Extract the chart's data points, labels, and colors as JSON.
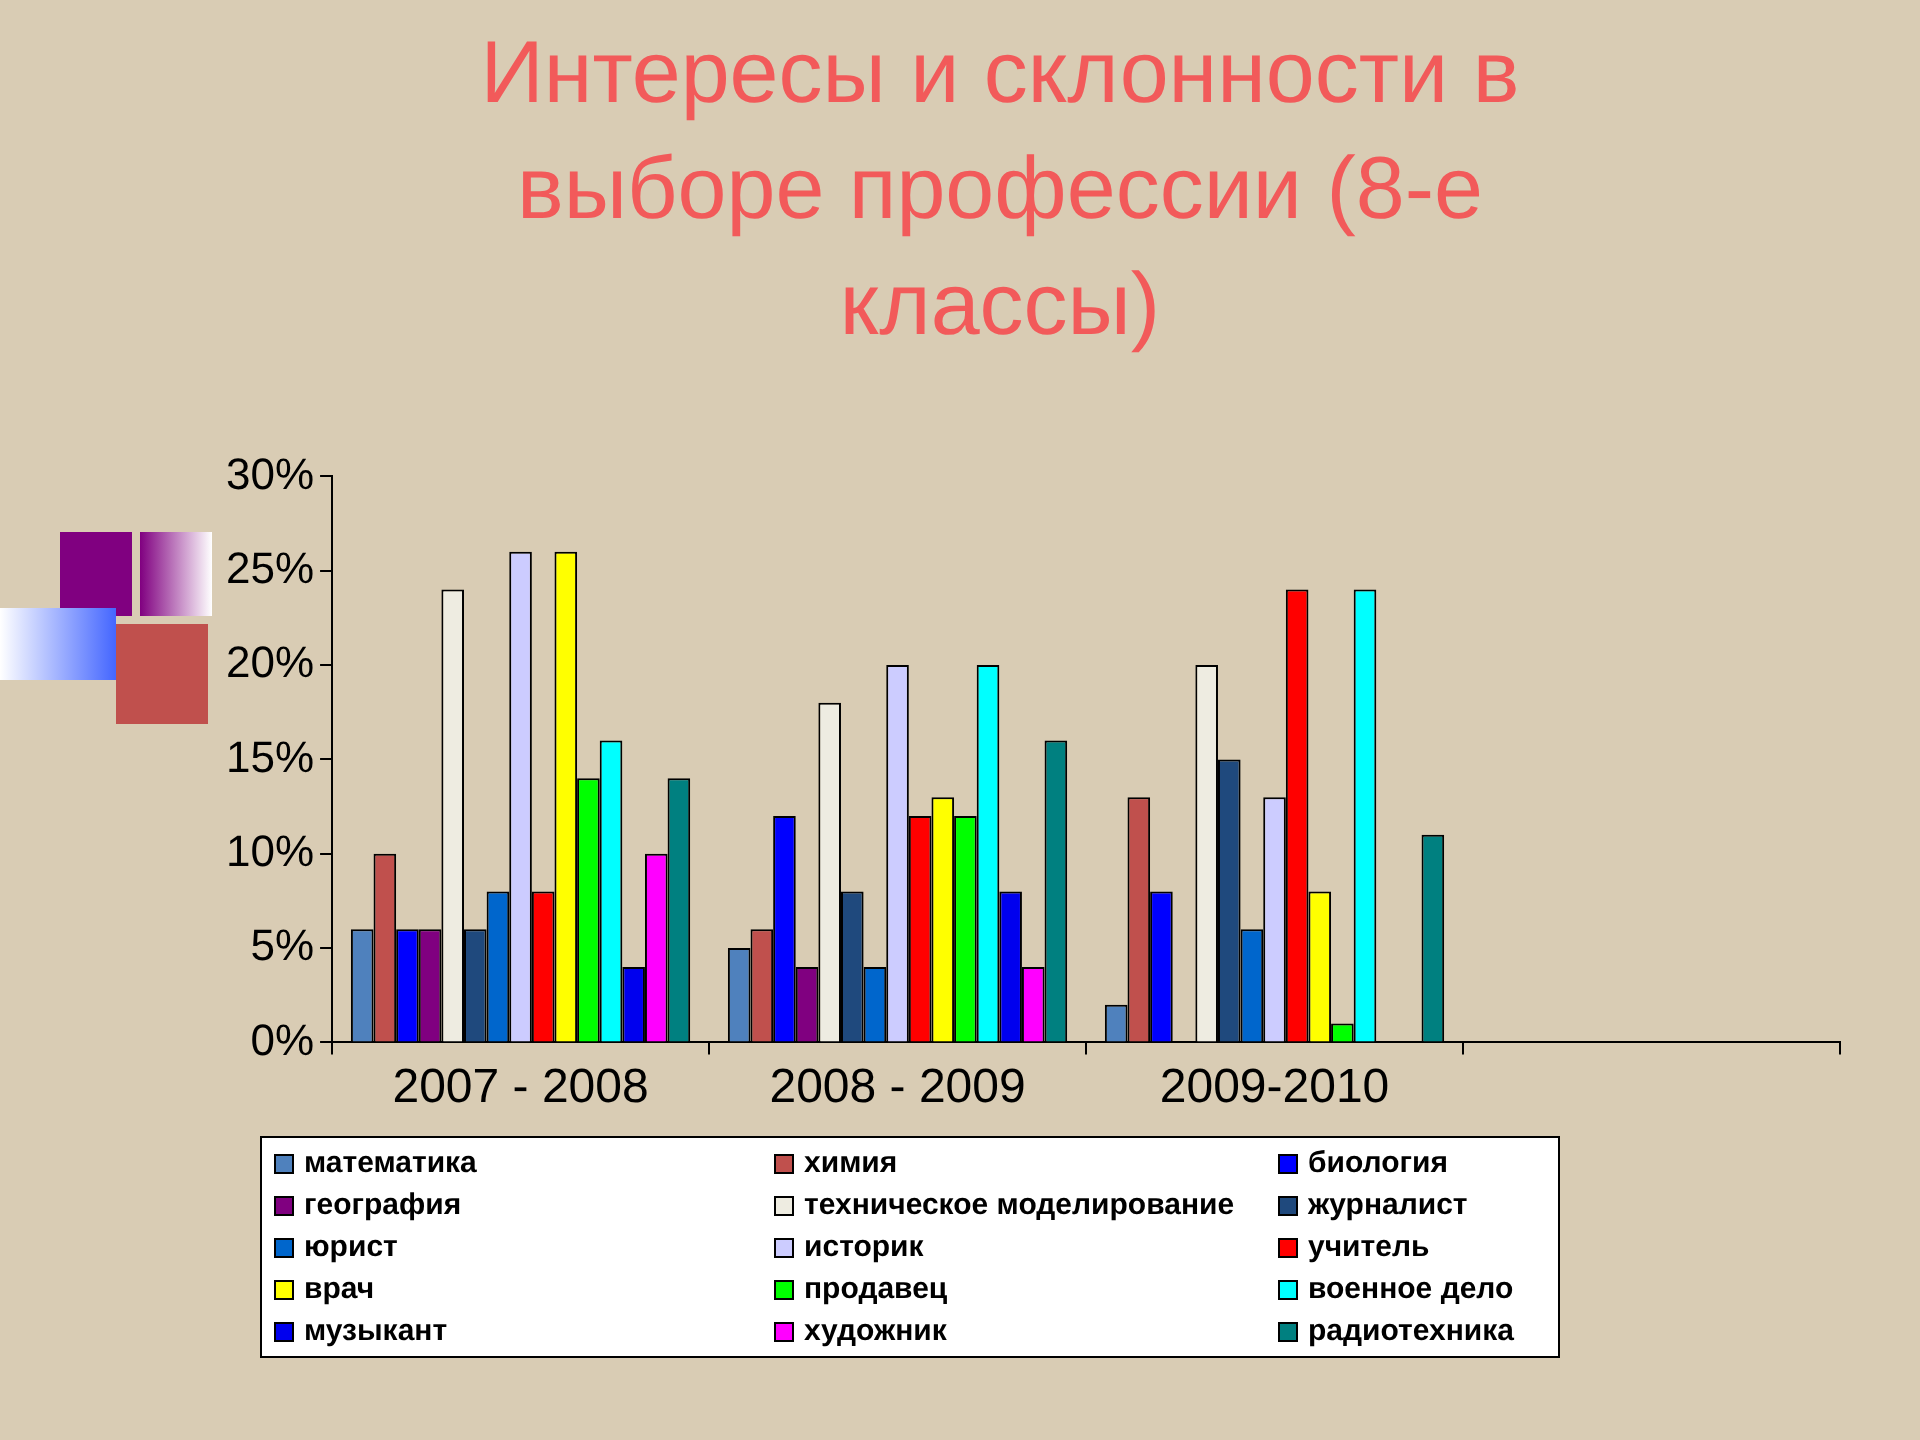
{
  "chart_data": {
    "type": "bar",
    "title": "Интересы и склонности в выборе профессии (8-е классы)",
    "categories": [
      "2007 - 2008",
      "2008 - 2009",
      "2009-2010",
      null
    ],
    "series": [
      {
        "name": "математика",
        "color": "#4f81bd",
        "values": [
          6,
          5,
          2,
          null
        ]
      },
      {
        "name": "химия",
        "color": "#c0504d",
        "values": [
          10,
          6,
          13,
          null
        ]
      },
      {
        "name": "биология",
        "color": "#0000ff",
        "values": [
          6,
          12,
          8,
          null
        ]
      },
      {
        "name": "география",
        "color": "#800080",
        "values": [
          6,
          4,
          0,
          null
        ]
      },
      {
        "name": "техническое моделирование",
        "color": "#eeece1",
        "values": [
          24,
          18,
          20,
          null
        ]
      },
      {
        "name": "журналист",
        "color": "#1f497d",
        "values": [
          6,
          8,
          15,
          null
        ]
      },
      {
        "name": "юрист",
        "color": "#0066cc",
        "values": [
          8,
          4,
          6,
          null
        ]
      },
      {
        "name": "историк",
        "color": "#ccccff",
        "values": [
          26,
          20,
          13,
          null
        ]
      },
      {
        "name": "учитель",
        "color": "#ff0000",
        "values": [
          8,
          12,
          24,
          null
        ]
      },
      {
        "name": "врач",
        "color": "#ffff00",
        "values": [
          26,
          13,
          8,
          null
        ]
      },
      {
        "name": "продавец",
        "color": "#00ff00",
        "values": [
          14,
          12,
          1,
          null
        ]
      },
      {
        "name": "военное дело",
        "color": "#00ffff",
        "values": [
          16,
          20,
          24,
          null
        ]
      },
      {
        "name": "музыкант",
        "color": "#0000ee",
        "values": [
          4,
          8,
          0,
          null
        ]
      },
      {
        "name": "художник",
        "color": "#ff00ff",
        "values": [
          10,
          4,
          0,
          null
        ]
      },
      {
        "name": "радиотехника",
        "color": "#008080",
        "values": [
          14,
          16,
          11,
          null
        ]
      }
    ],
    "ylim": [
      0,
      30
    ],
    "yticks": [
      {
        "value": 0,
        "label": "0%"
      },
      {
        "value": 5,
        "label": "5%"
      },
      {
        "value": 10,
        "label": "10%"
      },
      {
        "value": 15,
        "label": "15%"
      },
      {
        "value": 20,
        "label": "20%"
      },
      {
        "value": 25,
        "label": "25%"
      },
      {
        "value": 30,
        "label": "30%"
      }
    ],
    "grid": false,
    "legend": "bottom"
  }
}
